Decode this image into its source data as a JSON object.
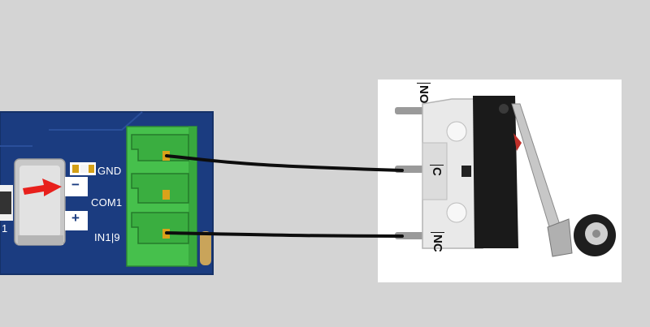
{
  "pcb": {
    "labels": {
      "gnd": "GND",
      "com1": "COM1",
      "in1": "IN1|9",
      "minus": "−",
      "plus": "+",
      "edge_num": "1"
    },
    "colors": {
      "board": "#1b3c80",
      "terminal": "#46c04c",
      "arrow": "#e8201c"
    }
  },
  "switch": {
    "labels": {
      "no": "NO",
      "c": "C",
      "nc": "NC"
    }
  },
  "wires": [
    {
      "from": "IN1 terminal top",
      "to": "C"
    },
    {
      "from": "IN1 terminal bottom",
      "to": "NC"
    }
  ]
}
